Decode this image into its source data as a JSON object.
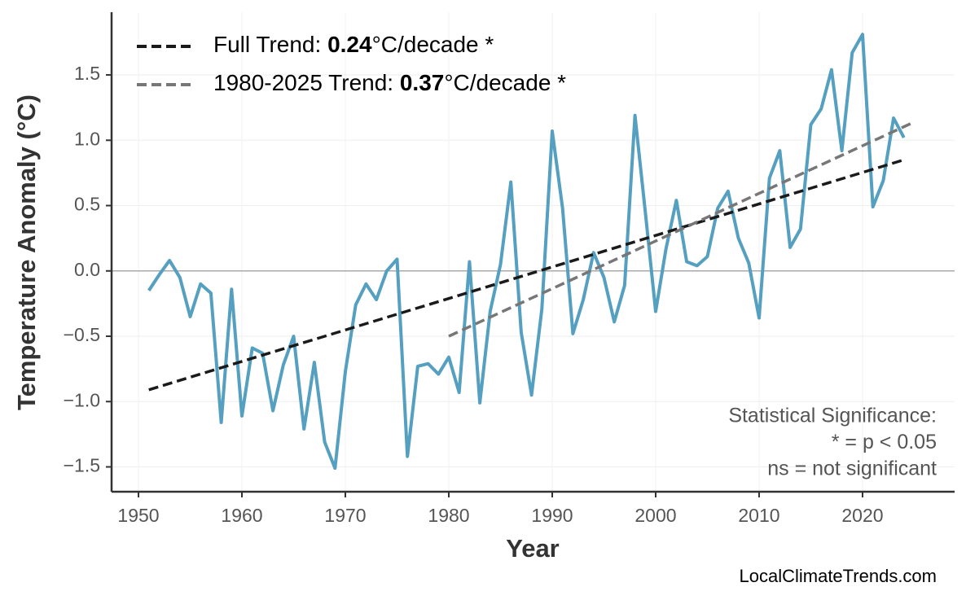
{
  "chart_data": {
    "type": "line",
    "y_label": "Temperature Anomaly (°C)",
    "x_label": "Year",
    "xlim": [
      1947.4,
      2028.9
    ],
    "ylim": [
      -1.69,
      1.98
    ],
    "xticks": [
      1950,
      1960,
      1970,
      1980,
      1990,
      2000,
      2010,
      2020
    ],
    "yticks": [
      {
        "value": -1.5,
        "label": "−1.5"
      },
      {
        "value": -1.0,
        "label": "−1.0"
      },
      {
        "value": -0.5,
        "label": "−0.5"
      },
      {
        "value": 0,
        "label": "0.0"
      },
      0.5,
      {
        "value": 1.0,
        "label": "1.0"
      },
      1.5
    ],
    "grid": true,
    "reference_line": 0,
    "series": [
      {
        "color": "#559fc0",
        "dash": false,
        "x": [
          1951,
          1952,
          1953,
          1954,
          1955,
          1956,
          1957,
          1958,
          1959,
          1960,
          1961,
          1962,
          1963,
          1964,
          1965,
          1966,
          1967,
          1968,
          1969,
          1970,
          1971,
          1972,
          1973,
          1974,
          1975,
          1976,
          1977,
          1978,
          1979,
          1980,
          1981,
          1982,
          1983,
          1984,
          1985,
          1986,
          1987,
          1988,
          1989,
          1990,
          1991,
          1992,
          1993,
          1994,
          1995,
          1996,
          1997,
          1998,
          1999,
          2000,
          2001,
          2002,
          2003,
          2004,
          2005,
          2006,
          2007,
          2008,
          2009,
          2010,
          2011,
          2012,
          2013,
          2014,
          2015,
          2016,
          2017,
          2018,
          2019,
          2020,
          2021,
          2022,
          2023,
          2024
        ],
        "values": [
          -0.15,
          -0.03,
          0.08,
          -0.05,
          -0.35,
          -0.1,
          -0.17,
          -1.16,
          -0.14,
          -1.11,
          -0.59,
          -0.63,
          -1.07,
          -0.72,
          -0.5,
          -1.21,
          -0.7,
          -1.31,
          -1.51,
          -0.77,
          -0.26,
          -0.1,
          -0.22,
          0.0,
          0.09,
          -1.42,
          -0.73,
          -0.71,
          -0.79,
          -0.66,
          -0.93,
          0.07,
          -1.01,
          -0.31,
          0.05,
          0.68,
          -0.47,
          -0.95,
          -0.29,
          1.07,
          0.48,
          -0.48,
          -0.22,
          0.14,
          -0.05,
          -0.39,
          -0.11,
          1.19,
          0.45,
          -0.31,
          0.17,
          0.54,
          0.07,
          0.04,
          0.11,
          0.48,
          0.61,
          0.25,
          0.06,
          -0.36,
          0.71,
          0.92,
          0.18,
          0.32,
          1.12,
          1.24,
          1.54,
          0.92,
          1.67,
          1.81,
          0.49,
          0.69,
          1.17,
          1.02
        ]
      },
      {
        "name": "Full Trend:",
        "rate": 0.24,
        "rate_unit": "°C/decade *",
        "color": "#1a1a1a",
        "dash": true,
        "x": [
          1951,
          2024
        ],
        "values": [
          -0.91,
          0.85
        ]
      },
      {
        "name": "1980-2025 Trend:",
        "rate": 0.37,
        "rate_unit": "°C/decade *",
        "color": "#777777",
        "dash": true,
        "x": [
          1980,
          2025
        ],
        "values": [
          -0.5,
          1.14
        ]
      }
    ],
    "annotation": [
      "Statistical Significance:",
      "* = p < 0.05",
      "ns = not significant"
    ],
    "watermark": "LocalClimateTrends.com"
  }
}
